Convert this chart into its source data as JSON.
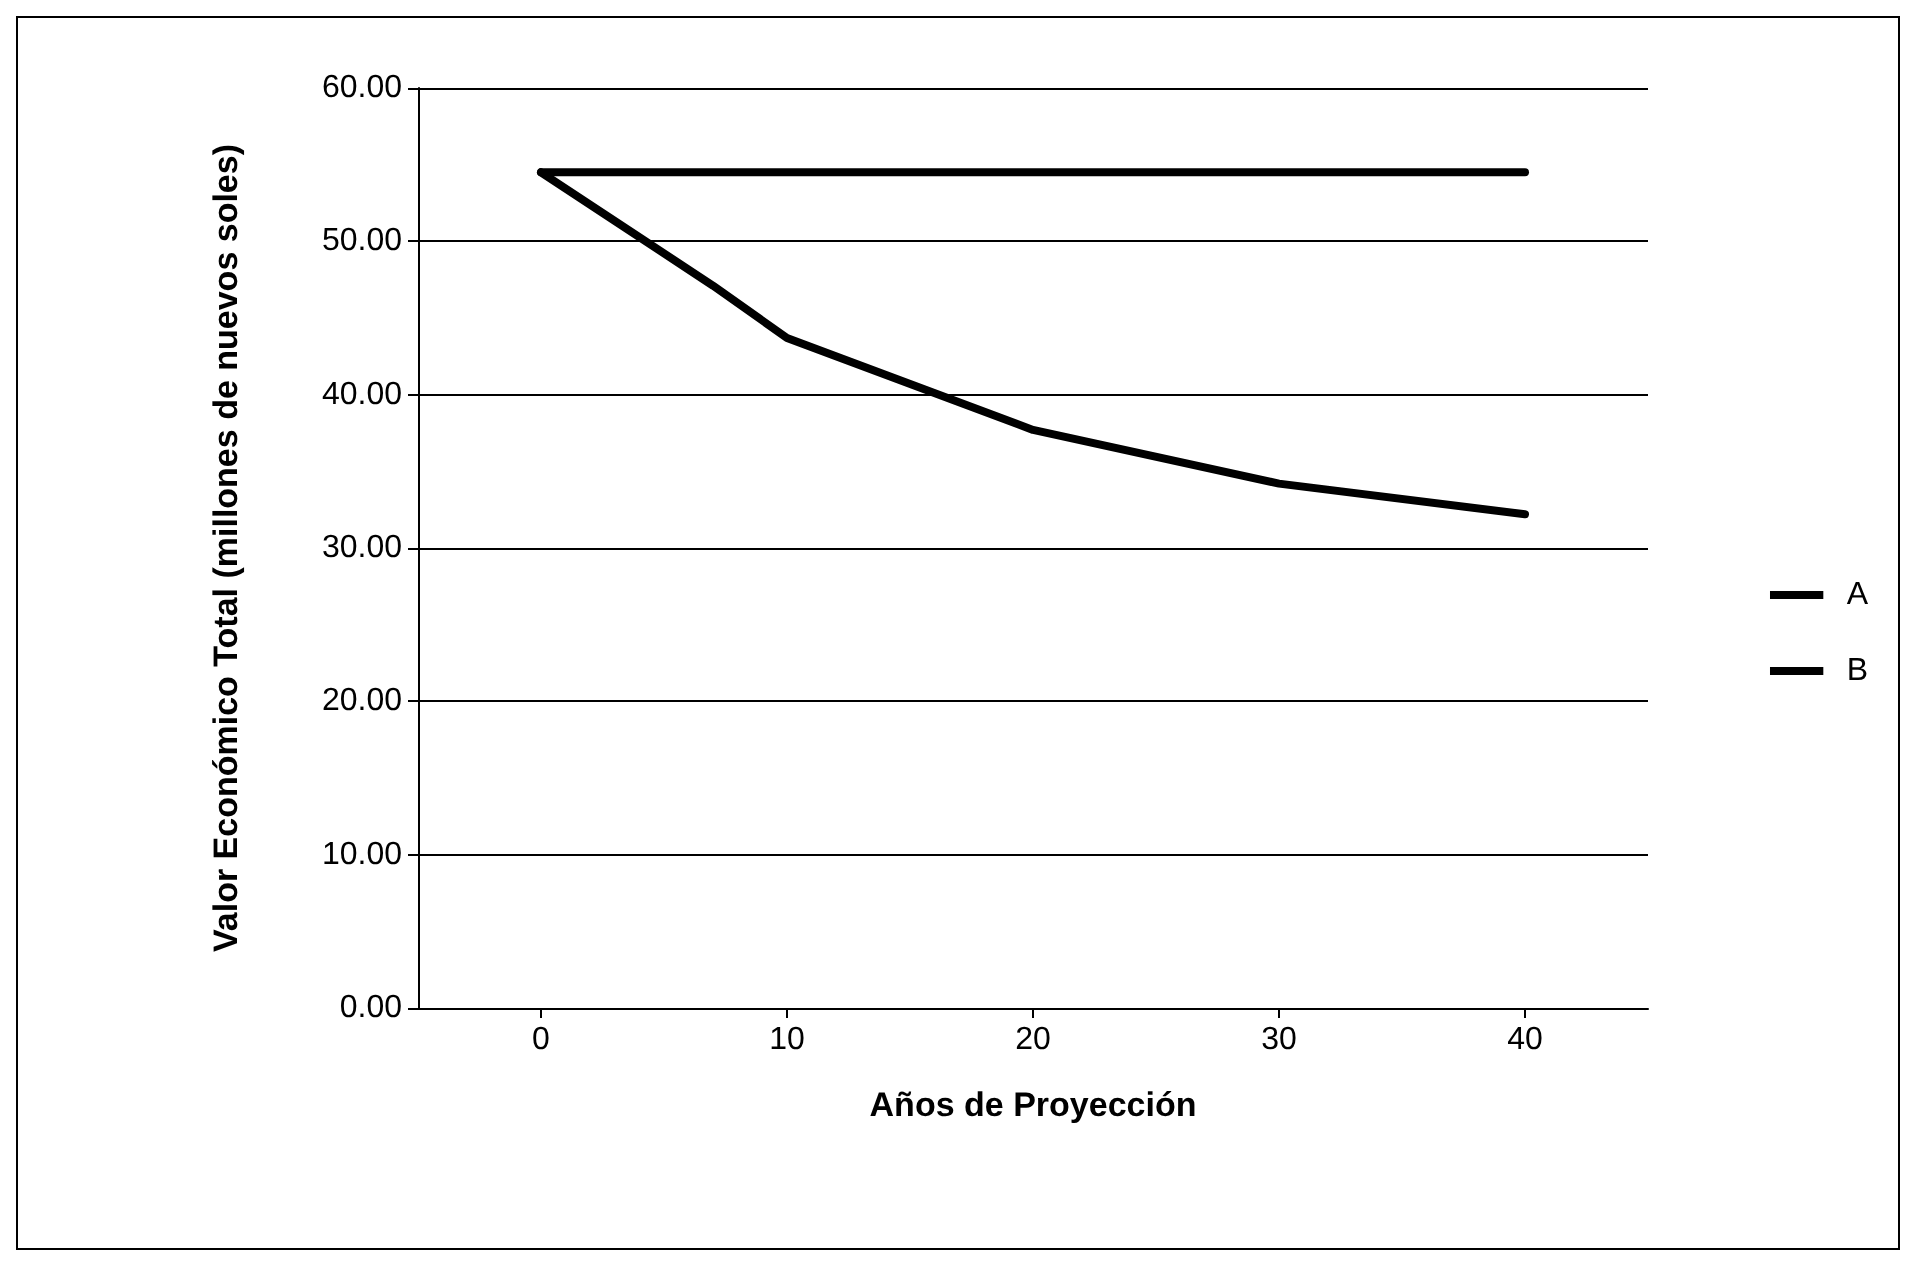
{
  "chart_data": {
    "type": "line",
    "xlabel": "Años de Proyección",
    "ylabel": "Valor Económico Total (millones de nuevos soles)",
    "series": [
      {
        "name": "A",
        "color": "#000000",
        "x": [
          0,
          40
        ],
        "values": [
          54.5,
          54.5
        ]
      },
      {
        "name": "B",
        "color": "#000000",
        "x": [
          0,
          7,
          10,
          20,
          30,
          40
        ],
        "values": [
          54.5,
          47.1,
          43.7,
          37.7,
          34.2,
          32.2
        ]
      }
    ],
    "xlim": [
      -5,
      45
    ],
    "xticks": [
      0,
      10,
      20,
      30,
      40
    ],
    "ylim": [
      0,
      60
    ],
    "yticks": [
      {
        "value": 0,
        "label": "0.00"
      },
      {
        "value": 10,
        "label": "10.00"
      },
      {
        "value": 20,
        "label": "20.00"
      },
      {
        "value": 30,
        "label": "30.00"
      },
      {
        "value": 40,
        "label": "40.00"
      },
      {
        "value": 50,
        "label": "50.00"
      },
      {
        "value": 60,
        "label": "60.00"
      }
    ],
    "grid": "y",
    "legend": "right",
    "marker": "none",
    "line_style": "solid"
  }
}
